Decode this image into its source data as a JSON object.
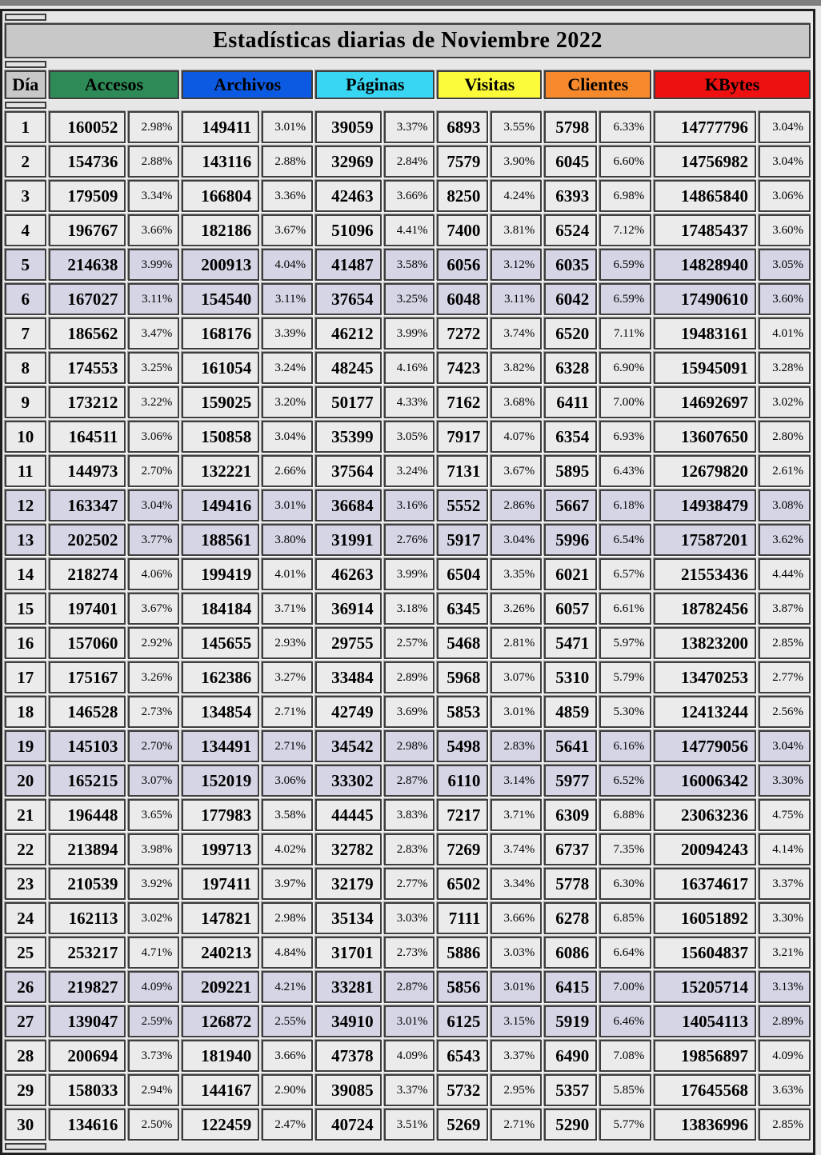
{
  "page": {
    "title": "Estadísticas diarias de Noviembre 2022"
  },
  "colors": {
    "page_bg": "#E7E7E7",
    "rule_color": "#7F7F7F",
    "title_bg": "#C8C8C8",
    "cell_bg": "#EBEBEB",
    "weekend_bg": "#D5D5E5",
    "border_dark": "#3E3E3E",
    "table_border": "#1E1E1E"
  },
  "table": {
    "day_header": "Día",
    "columns": [
      {
        "key": "accesos",
        "label": "Accesos",
        "color": "#2E8B57"
      },
      {
        "key": "archivos",
        "label": "Archivos",
        "color": "#0D5AE2"
      },
      {
        "key": "paginas",
        "label": "Páginas",
        "color": "#38D6F3"
      },
      {
        "key": "visitas",
        "label": "Visitas",
        "color": "#FBFB3B"
      },
      {
        "key": "clientes",
        "label": "Clientes",
        "color": "#F6892C"
      },
      {
        "key": "kbytes",
        "label": "KBytes",
        "color": "#EE1111"
      }
    ],
    "weekend_days": [
      5,
      6,
      12,
      13,
      19,
      20,
      26,
      27
    ],
    "rows": [
      {
        "day": 1,
        "cells": [
          "160052",
          "2.98%",
          "149411",
          "3.01%",
          "39059",
          "3.37%",
          "6893",
          "3.55%",
          "5798",
          "6.33%",
          "14777796",
          "3.04%"
        ]
      },
      {
        "day": 2,
        "cells": [
          "154736",
          "2.88%",
          "143116",
          "2.88%",
          "32969",
          "2.84%",
          "7579",
          "3.90%",
          "6045",
          "6.60%",
          "14756982",
          "3.04%"
        ]
      },
      {
        "day": 3,
        "cells": [
          "179509",
          "3.34%",
          "166804",
          "3.36%",
          "42463",
          "3.66%",
          "8250",
          "4.24%",
          "6393",
          "6.98%",
          "14865840",
          "3.06%"
        ]
      },
      {
        "day": 4,
        "cells": [
          "196767",
          "3.66%",
          "182186",
          "3.67%",
          "51096",
          "4.41%",
          "7400",
          "3.81%",
          "6524",
          "7.12%",
          "17485437",
          "3.60%"
        ]
      },
      {
        "day": 5,
        "cells": [
          "214638",
          "3.99%",
          "200913",
          "4.04%",
          "41487",
          "3.58%",
          "6056",
          "3.12%",
          "6035",
          "6.59%",
          "14828940",
          "3.05%"
        ]
      },
      {
        "day": 6,
        "cells": [
          "167027",
          "3.11%",
          "154540",
          "3.11%",
          "37654",
          "3.25%",
          "6048",
          "3.11%",
          "6042",
          "6.59%",
          "17490610",
          "3.60%"
        ]
      },
      {
        "day": 7,
        "cells": [
          "186562",
          "3.47%",
          "168176",
          "3.39%",
          "46212",
          "3.99%",
          "7272",
          "3.74%",
          "6520",
          "7.11%",
          "19483161",
          "4.01%"
        ]
      },
      {
        "day": 8,
        "cells": [
          "174553",
          "3.25%",
          "161054",
          "3.24%",
          "48245",
          "4.16%",
          "7423",
          "3.82%",
          "6328",
          "6.90%",
          "15945091",
          "3.28%"
        ]
      },
      {
        "day": 9,
        "cells": [
          "173212",
          "3.22%",
          "159025",
          "3.20%",
          "50177",
          "4.33%",
          "7162",
          "3.68%",
          "6411",
          "7.00%",
          "14692697",
          "3.02%"
        ]
      },
      {
        "day": 10,
        "cells": [
          "164511",
          "3.06%",
          "150858",
          "3.04%",
          "35399",
          "3.05%",
          "7917",
          "4.07%",
          "6354",
          "6.93%",
          "13607650",
          "2.80%"
        ]
      },
      {
        "day": 11,
        "cells": [
          "144973",
          "2.70%",
          "132221",
          "2.66%",
          "37564",
          "3.24%",
          "7131",
          "3.67%",
          "5895",
          "6.43%",
          "12679820",
          "2.61%"
        ]
      },
      {
        "day": 12,
        "cells": [
          "163347",
          "3.04%",
          "149416",
          "3.01%",
          "36684",
          "3.16%",
          "5552",
          "2.86%",
          "5667",
          "6.18%",
          "14938479",
          "3.08%"
        ]
      },
      {
        "day": 13,
        "cells": [
          "202502",
          "3.77%",
          "188561",
          "3.80%",
          "31991",
          "2.76%",
          "5917",
          "3.04%",
          "5996",
          "6.54%",
          "17587201",
          "3.62%"
        ]
      },
      {
        "day": 14,
        "cells": [
          "218274",
          "4.06%",
          "199419",
          "4.01%",
          "46263",
          "3.99%",
          "6504",
          "3.35%",
          "6021",
          "6.57%",
          "21553436",
          "4.44%"
        ]
      },
      {
        "day": 15,
        "cells": [
          "197401",
          "3.67%",
          "184184",
          "3.71%",
          "36914",
          "3.18%",
          "6345",
          "3.26%",
          "6057",
          "6.61%",
          "18782456",
          "3.87%"
        ]
      },
      {
        "day": 16,
        "cells": [
          "157060",
          "2.92%",
          "145655",
          "2.93%",
          "29755",
          "2.57%",
          "5468",
          "2.81%",
          "5471",
          "5.97%",
          "13823200",
          "2.85%"
        ]
      },
      {
        "day": 17,
        "cells": [
          "175167",
          "3.26%",
          "162386",
          "3.27%",
          "33484",
          "2.89%",
          "5968",
          "3.07%",
          "5310",
          "5.79%",
          "13470253",
          "2.77%"
        ]
      },
      {
        "day": 18,
        "cells": [
          "146528",
          "2.73%",
          "134854",
          "2.71%",
          "42749",
          "3.69%",
          "5853",
          "3.01%",
          "4859",
          "5.30%",
          "12413244",
          "2.56%"
        ]
      },
      {
        "day": 19,
        "cells": [
          "145103",
          "2.70%",
          "134491",
          "2.71%",
          "34542",
          "2.98%",
          "5498",
          "2.83%",
          "5641",
          "6.16%",
          "14779056",
          "3.04%"
        ]
      },
      {
        "day": 20,
        "cells": [
          "165215",
          "3.07%",
          "152019",
          "3.06%",
          "33302",
          "2.87%",
          "6110",
          "3.14%",
          "5977",
          "6.52%",
          "16006342",
          "3.30%"
        ]
      },
      {
        "day": 21,
        "cells": [
          "196448",
          "3.65%",
          "177983",
          "3.58%",
          "44445",
          "3.83%",
          "7217",
          "3.71%",
          "6309",
          "6.88%",
          "23063236",
          "4.75%"
        ]
      },
      {
        "day": 22,
        "cells": [
          "213894",
          "3.98%",
          "199713",
          "4.02%",
          "32782",
          "2.83%",
          "7269",
          "3.74%",
          "6737",
          "7.35%",
          "20094243",
          "4.14%"
        ]
      },
      {
        "day": 23,
        "cells": [
          "210539",
          "3.92%",
          "197411",
          "3.97%",
          "32179",
          "2.77%",
          "6502",
          "3.34%",
          "5778",
          "6.30%",
          "16374617",
          "3.37%"
        ]
      },
      {
        "day": 24,
        "cells": [
          "162113",
          "3.02%",
          "147821",
          "2.98%",
          "35134",
          "3.03%",
          "7111",
          "3.66%",
          "6278",
          "6.85%",
          "16051892",
          "3.30%"
        ]
      },
      {
        "day": 25,
        "cells": [
          "253217",
          "4.71%",
          "240213",
          "4.84%",
          "31701",
          "2.73%",
          "5886",
          "3.03%",
          "6086",
          "6.64%",
          "15604837",
          "3.21%"
        ]
      },
      {
        "day": 26,
        "cells": [
          "219827",
          "4.09%",
          "209221",
          "4.21%",
          "33281",
          "2.87%",
          "5856",
          "3.01%",
          "6415",
          "7.00%",
          "15205714",
          "3.13%"
        ]
      },
      {
        "day": 27,
        "cells": [
          "139047",
          "2.59%",
          "126872",
          "2.55%",
          "34910",
          "3.01%",
          "6125",
          "3.15%",
          "5919",
          "6.46%",
          "14054113",
          "2.89%"
        ]
      },
      {
        "day": 28,
        "cells": [
          "200694",
          "3.73%",
          "181940",
          "3.66%",
          "47378",
          "4.09%",
          "6543",
          "3.37%",
          "6490",
          "7.08%",
          "19856897",
          "4.09%"
        ]
      },
      {
        "day": 29,
        "cells": [
          "158033",
          "2.94%",
          "144167",
          "2.90%",
          "39085",
          "3.37%",
          "5732",
          "2.95%",
          "5357",
          "5.85%",
          "17645568",
          "3.63%"
        ]
      },
      {
        "day": 30,
        "cells": [
          "134616",
          "2.50%",
          "122459",
          "2.47%",
          "40724",
          "3.51%",
          "5269",
          "2.71%",
          "5290",
          "5.77%",
          "13836996",
          "2.85%"
        ]
      }
    ]
  }
}
